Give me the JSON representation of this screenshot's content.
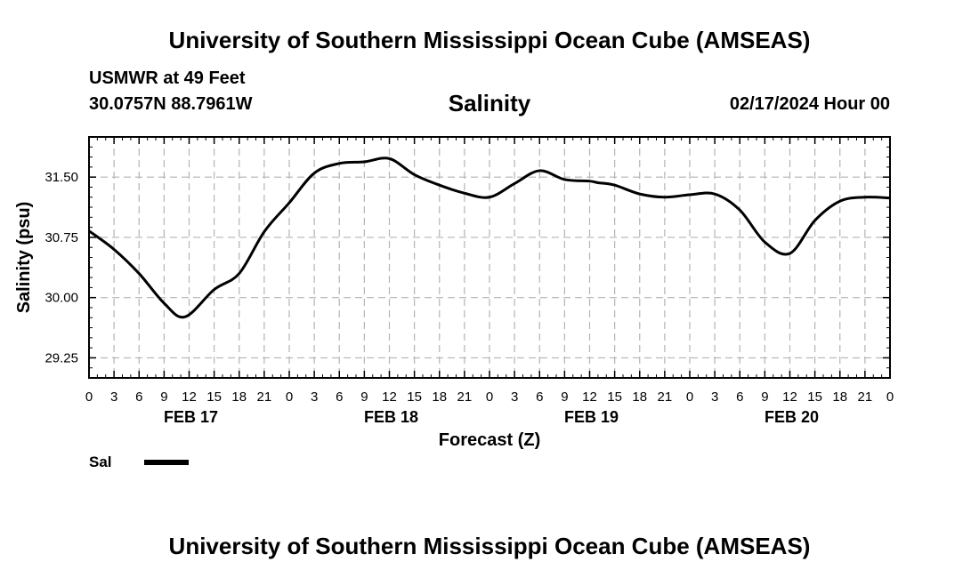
{
  "header": {
    "title": "University of Southern Mississippi Ocean Cube (AMSEAS)",
    "station": "USMWR at 49 Feet",
    "coords": "30.0757N  88.7961W",
    "variable": "Salinity",
    "datetime": "02/17/2024 Hour 00"
  },
  "footer": {
    "title": "University of Southern Mississippi Ocean Cube (AMSEAS)"
  },
  "legend": {
    "label": "Sal",
    "color": "#000000"
  },
  "chart_data": {
    "type": "line",
    "title": "Salinity",
    "xlabel": "Forecast (Z)",
    "ylabel": "Salinity (psu)",
    "xlim": [
      0,
      96
    ],
    "ylim": [
      29.0,
      32.0
    ],
    "grid": true,
    "x_ticks": [
      0,
      3,
      6,
      9,
      12,
      15,
      18,
      21,
      24,
      27,
      30,
      33,
      36,
      39,
      42,
      45,
      48,
      51,
      54,
      57,
      60,
      63,
      66,
      69,
      72,
      75,
      78,
      81,
      84,
      87,
      90,
      93,
      96
    ],
    "x_tick_labels": [
      "0",
      "3",
      "6",
      "9",
      "12",
      "15",
      "18",
      "21",
      "0",
      "3",
      "6",
      "9",
      "12",
      "15",
      "18",
      "21",
      "0",
      "3",
      "6",
      "9",
      "12",
      "15",
      "18",
      "21",
      "0",
      "3",
      "6",
      "9",
      "12",
      "15",
      "18",
      "21",
      "0"
    ],
    "date_labels": [
      {
        "x": 12,
        "label": "FEB 17"
      },
      {
        "x": 36,
        "label": "FEB 18"
      },
      {
        "x": 60,
        "label": "FEB 19"
      },
      {
        "x": 84,
        "label": "FEB 20"
      }
    ],
    "y_ticks": [
      29.25,
      30.0,
      30.75,
      31.5
    ],
    "y_tick_labels": [
      "29.25",
      "30.00",
      "30.75",
      "31.50"
    ],
    "series": [
      {
        "name": "Sal",
        "color": "#000000",
        "x": [
          0,
          3,
          6,
          9,
          11.5,
          15,
          18,
          21,
          24,
          27,
          30,
          33,
          36,
          39,
          42,
          45,
          48,
          51,
          54,
          57,
          60,
          61,
          63,
          66,
          69,
          72,
          75,
          78,
          81,
          84,
          87,
          90,
          93,
          96
        ],
        "y": [
          30.83,
          30.6,
          30.3,
          29.93,
          29.76,
          30.1,
          30.3,
          30.82,
          31.18,
          31.55,
          31.67,
          31.69,
          31.73,
          31.53,
          31.4,
          31.3,
          31.25,
          31.42,
          31.58,
          31.47,
          31.45,
          31.43,
          31.4,
          31.29,
          31.25,
          31.28,
          31.29,
          31.09,
          30.69,
          30.55,
          30.96,
          31.2,
          31.25,
          31.24
        ]
      }
    ]
  }
}
